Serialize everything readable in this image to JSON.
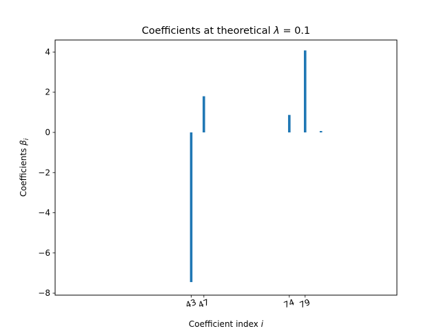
{
  "chart_data": {
    "type": "bar",
    "title_prefix": "Coefficients at theoretical ",
    "title_symbol": "λ",
    "title_suffix": " = 0.1",
    "xlabel_prefix": "Coefficient index ",
    "xlabel_symbol": "i",
    "ylabel_prefix": "Coefficients ",
    "ylabel_symbol": "β",
    "ylabel_subscript": "i",
    "xlim": [
      0,
      108
    ],
    "ylim": [
      -8.1,
      4.6
    ],
    "yticks": [
      -8,
      -6,
      -4,
      -2,
      0,
      2,
      4
    ],
    "ytick_labels": [
      "−8",
      "−6",
      "−4",
      "−2",
      "0",
      "2",
      "4"
    ],
    "xticks": [
      43,
      47,
      74,
      79
    ],
    "xtick_labels": [
      "43",
      "47",
      "74",
      "79"
    ],
    "bars": [
      {
        "index": 43,
        "value": -7.45
      },
      {
        "index": 47,
        "value": 1.8
      },
      {
        "index": 74,
        "value": 0.87
      },
      {
        "index": 79,
        "value": 4.08
      },
      {
        "index": 84,
        "value": 0.07
      }
    ],
    "bar_color": "#1f77b4"
  }
}
